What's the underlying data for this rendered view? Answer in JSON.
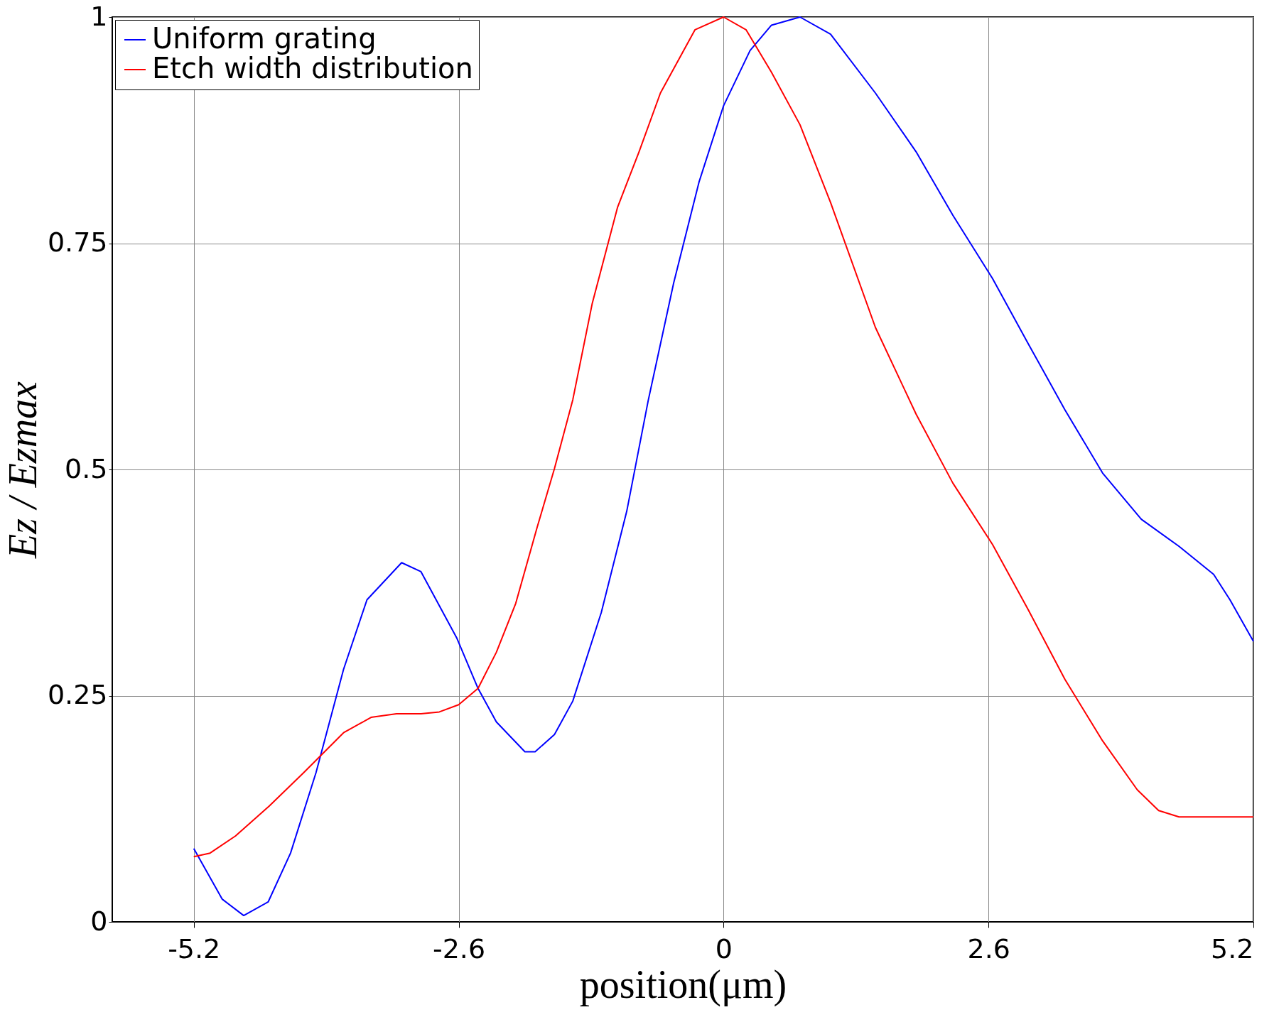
{
  "chart_data": {
    "type": "line",
    "xlabel": "position(μm)",
    "ylabel": "Ez / Ezmax",
    "xlim": [
      -6,
      5.2
    ],
    "ylim": [
      0,
      1
    ],
    "xticks": [
      -5.2,
      -2.6,
      0,
      2.6,
      5.2
    ],
    "yticks": [
      0,
      0.25,
      0.5,
      0.75,
      1
    ],
    "grid": true,
    "legend": "top left",
    "line_style": "solid",
    "series": [
      {
        "name": "Uniform grating",
        "color": "#0000ff",
        "x": [
          -5.2,
          -4.92,
          -4.71,
          -4.47,
          -4.25,
          -4.0,
          -3.73,
          -3.5,
          -3.16,
          -2.97,
          -2.62,
          -2.41,
          -2.23,
          -1.95,
          -1.85,
          -1.66,
          -1.48,
          -1.2,
          -0.95,
          -0.74,
          -0.49,
          -0.24,
          0,
          0.26,
          0.47,
          0.75,
          1.05,
          1.49,
          1.89,
          2.25,
          2.64,
          2.99,
          3.35,
          3.72,
          4.1,
          4.47,
          4.81,
          4.97,
          5.2
        ],
        "values": [
          0.081,
          0.025,
          0.007,
          0.022,
          0.076,
          0.165,
          0.279,
          0.356,
          0.397,
          0.387,
          0.314,
          0.258,
          0.221,
          0.188,
          0.188,
          0.207,
          0.244,
          0.342,
          0.454,
          0.576,
          0.706,
          0.818,
          0.902,
          0.963,
          0.991,
          1.0,
          0.981,
          0.916,
          0.851,
          0.781,
          0.711,
          0.639,
          0.566,
          0.496,
          0.445,
          0.415,
          0.384,
          0.356,
          0.31
        ]
      },
      {
        "name": "Etch width distribution",
        "color": "#ff0000",
        "x": [
          -5.2,
          -5.04,
          -4.79,
          -4.46,
          -4.12,
          -3.73,
          -3.46,
          -3.21,
          -2.97,
          -2.79,
          -2.6,
          -2.41,
          -2.23,
          -2.04,
          -1.83,
          -1.66,
          -1.48,
          -1.29,
          -1.04,
          -0.83,
          -0.62,
          -0.28,
          0,
          0.22,
          0.47,
          0.75,
          1.05,
          1.49,
          1.89,
          2.25,
          2.64,
          2.99,
          3.35,
          3.72,
          4.06,
          4.27,
          4.47,
          5.2
        ],
        "values": [
          0.072,
          0.076,
          0.095,
          0.128,
          0.165,
          0.209,
          0.226,
          0.23,
          0.23,
          0.232,
          0.24,
          0.258,
          0.298,
          0.352,
          0.436,
          0.501,
          0.577,
          0.683,
          0.79,
          0.851,
          0.916,
          0.986,
          1.0,
          0.986,
          0.939,
          0.881,
          0.795,
          0.657,
          0.561,
          0.485,
          0.417,
          0.345,
          0.268,
          0.2,
          0.146,
          0.123,
          0.116,
          0.116
        ]
      }
    ]
  }
}
